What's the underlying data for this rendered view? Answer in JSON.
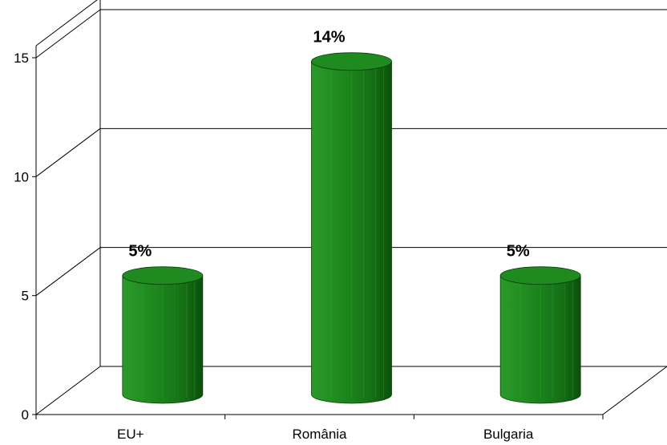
{
  "chart_data": {
    "type": "bar",
    "style": "3d-cylinder",
    "categories": [
      "EU+",
      "România",
      "Bulgaria"
    ],
    "values": [
      5,
      14,
      5
    ],
    "value_labels": [
      "5%",
      "14%",
      "5%"
    ],
    "y_ticks": [
      "0",
      "5",
      "10",
      "15"
    ],
    "ylim": [
      0,
      15
    ],
    "grid": true,
    "legend": "none",
    "bar_color": "#1f8a1f",
    "bar_color_dark": "#0d5c0d",
    "bar_color_light": "#2fb02f"
  }
}
